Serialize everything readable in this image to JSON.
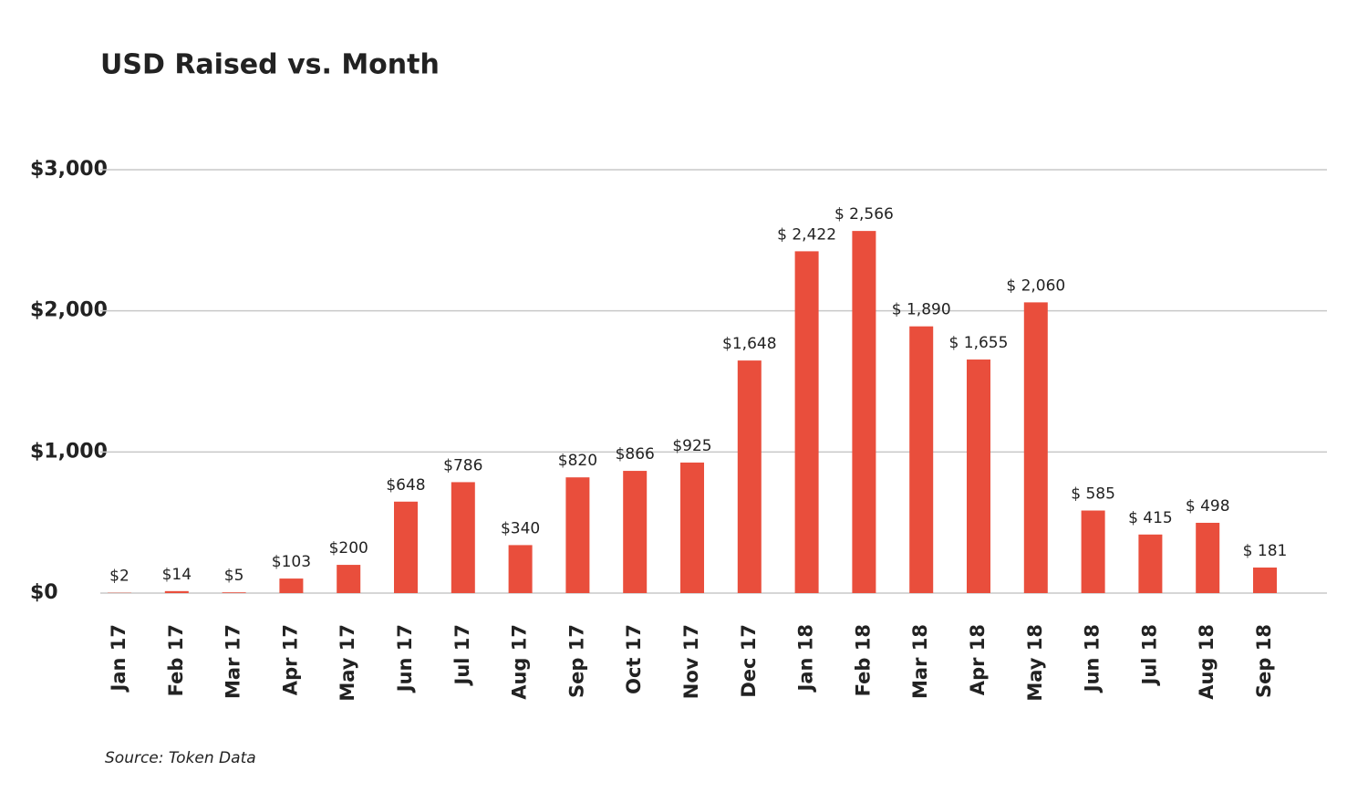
{
  "chart_data": {
    "type": "bar",
    "title": "USD Raised vs. Month",
    "categories": [
      "Jan 17",
      "Feb 17",
      "Mar 17",
      "Apr 17",
      "May 17",
      "Jun 17",
      "Jul 17",
      "Aug 17",
      "Sep 17",
      "Oct 17",
      "Nov 17",
      "Dec 17",
      "Jan 18",
      "Feb 18",
      "Mar 18",
      "Apr 18",
      "May 18",
      "Jun 18",
      "Jul 18",
      "Aug 18",
      "Sep 18"
    ],
    "values": [
      2,
      14,
      5,
      103,
      200,
      648,
      786,
      340,
      820,
      866,
      925,
      1648,
      2422,
      2566,
      1890,
      1655,
      2060,
      585,
      415,
      498,
      181
    ],
    "value_labels": [
      "$2",
      "$14",
      "$5",
      "$103",
      "$200",
      "$648",
      "$786",
      "$340",
      "$820",
      "$866",
      "$925",
      "$1,648",
      "$ 2,422",
      "$ 2,566",
      "$ 1,890",
      "$ 1,655",
      "$ 2,060",
      "$ 585",
      "$ 415",
      "$ 498",
      "$ 181"
    ],
    "color": "#e94e3c",
    "ylim": [
      0,
      3000
    ],
    "yticks": [
      {
        "value": 0,
        "label": "$0"
      },
      {
        "value": 1000,
        "label": "$1,000"
      },
      {
        "value": 2000,
        "label": "$2,000"
      },
      {
        "value": 3000,
        "label": "$3,000"
      }
    ],
    "grid": true,
    "source": "Source: Token Data"
  }
}
